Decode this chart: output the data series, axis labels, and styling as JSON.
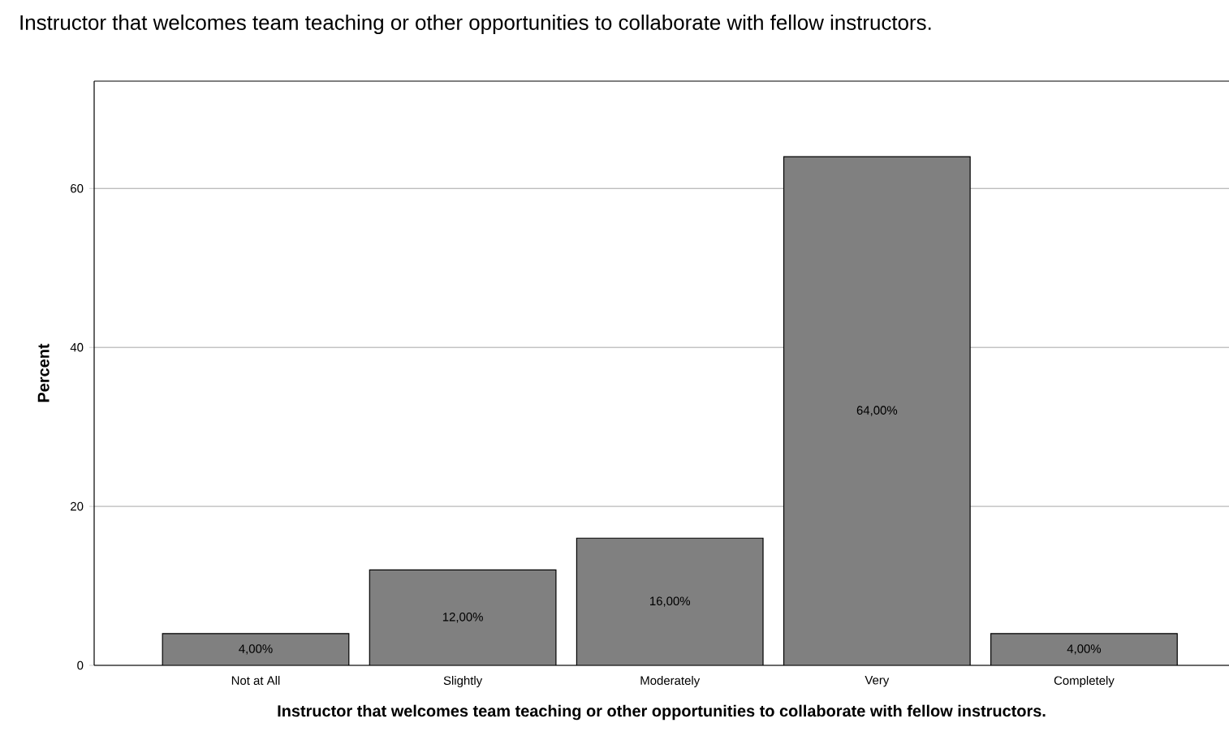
{
  "chart_data": {
    "type": "bar",
    "title": "Instructor that welcomes team teaching or other opportunities to collaborate with fellow instructors.",
    "xlabel": "Instructor that welcomes team teaching or other opportunities to collaborate with fellow instructors.",
    "ylabel": "Percent",
    "categories": [
      "Not at All",
      "Slightly",
      "Moderately",
      "Very",
      "Completely"
    ],
    "values": [
      4,
      12,
      16,
      64,
      4
    ],
    "value_labels": [
      "4,00%",
      "12,00%",
      "16,00%",
      "64,00%",
      "4,00%"
    ],
    "color": "#808080",
    "ylim": [
      0,
      73.5
    ],
    "yticks": [
      0,
      20,
      40,
      60
    ],
    "grid": "y"
  }
}
